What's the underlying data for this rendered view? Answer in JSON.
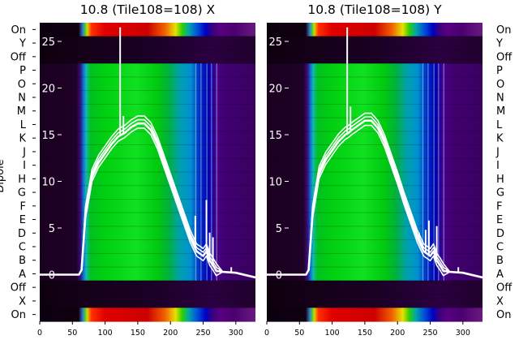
{
  "figure": {
    "ylabel": "Dipole",
    "dipole_labels": [
      "On",
      "Y",
      "Off",
      "P",
      "O",
      "N",
      "M",
      "L",
      "K",
      "J",
      "I",
      "H",
      "G",
      "F",
      "E",
      "D",
      "C",
      "B",
      "A",
      "Off",
      "X",
      "On"
    ],
    "x_ticks": [
      0,
      50,
      100,
      150,
      200,
      250,
      300
    ],
    "power_ticks": [
      0,
      5,
      10,
      15,
      20,
      25
    ]
  },
  "chart_data": [
    {
      "type": "heatmap",
      "title": "10.8 (Tile108=108) X",
      "xlim": [
        0,
        330
      ],
      "x_ticks": [
        0,
        50,
        100,
        150,
        200,
        250,
        300
      ],
      "y_categories": [
        "On",
        "Y",
        "Off",
        "P",
        "O",
        "N",
        "M",
        "L",
        "K",
        "J",
        "I",
        "H",
        "G",
        "F",
        "E",
        "D",
        "C",
        "B",
        "A",
        "Off",
        "X",
        "On"
      ],
      "colormap": "nipy_spectral",
      "overlay": {
        "type": "line",
        "ylim": [
          -5,
          27
        ],
        "y_ticks": [
          0,
          5,
          10,
          15,
          20,
          25
        ],
        "color": "#ffffff",
        "series": [
          {
            "x": [
              0,
              60,
              64,
              70,
              80,
              90,
              100,
              110,
              120,
              125,
              130,
              140,
              150,
              160,
              170,
              180,
              190,
              200,
              210,
              220,
              230,
              240,
              250,
              255,
              260,
              265,
              270,
              280,
              300,
              330
            ],
            "y": [
              0,
              0,
              0.5,
              6.5,
              10.5,
              12,
              13,
              14,
              14.8,
              15,
              15.2,
              15.8,
              16.2,
              16.2,
              15.5,
              14,
              12,
              10,
              8,
              6,
              4,
              2.5,
              2,
              2.5,
              1.5,
              1,
              0.4,
              0.3,
              0.2,
              -0.3
            ]
          }
        ],
        "spikes": [
          {
            "x": 123,
            "y": 26.5
          },
          {
            "x": 128,
            "y": 17
          },
          {
            "x": 238,
            "y": 6.3
          },
          {
            "x": 255,
            "y": 8
          },
          {
            "x": 260,
            "y": 4.5
          },
          {
            "x": 265,
            "y": 4
          },
          {
            "x": 293,
            "y": 0.8
          }
        ]
      }
    },
    {
      "type": "heatmap",
      "title": "10.8 (Tile108=108) Y",
      "xlim": [
        0,
        330
      ],
      "x_ticks": [
        0,
        50,
        100,
        150,
        200,
        250,
        300
      ],
      "y_categories": [
        "On",
        "Y",
        "Off",
        "P",
        "O",
        "N",
        "M",
        "L",
        "K",
        "J",
        "I",
        "H",
        "G",
        "F",
        "E",
        "D",
        "C",
        "B",
        "A",
        "Off",
        "X",
        "On"
      ],
      "colormap": "nipy_spectral",
      "overlay": {
        "type": "line",
        "ylim": [
          -5,
          27
        ],
        "y_ticks": [
          0,
          5,
          10,
          15,
          20,
          25
        ],
        "color": "#ffffff",
        "series": [
          {
            "x": [
              0,
              60,
              64,
              70,
              80,
              90,
              100,
              110,
              120,
              125,
              130,
              140,
              150,
              160,
              170,
              180,
              190,
              200,
              210,
              220,
              230,
              240,
              250,
              255,
              260,
              265,
              270,
              280,
              300,
              330
            ],
            "y": [
              0,
              0,
              0.5,
              6.5,
              10.8,
              12.3,
              13.3,
              14.3,
              15,
              15.2,
              15.5,
              16,
              16.5,
              16.5,
              15.7,
              14.2,
              12.2,
              10.2,
              8,
              6,
              4,
              2.5,
              2,
              2.5,
              1.5,
              1,
              0.4,
              0.3,
              0.2,
              -0.3
            ]
          }
        ],
        "spikes": [
          {
            "x": 123,
            "y": 26.5
          },
          {
            "x": 128,
            "y": 18
          },
          {
            "x": 233,
            "y": 4.5
          },
          {
            "x": 243,
            "y": 4.8
          },
          {
            "x": 248,
            "y": 5.8
          },
          {
            "x": 260,
            "y": 5.2
          },
          {
            "x": 293,
            "y": 0.8
          }
        ]
      }
    }
  ]
}
